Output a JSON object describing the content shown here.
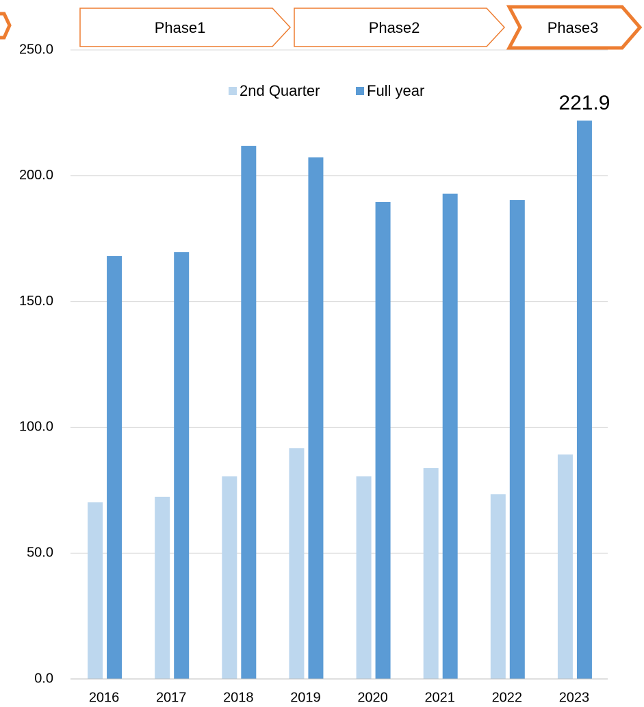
{
  "chart_data": {
    "type": "bar",
    "phases": [
      "Phase1",
      "Phase2",
      "Phase3"
    ],
    "categories": [
      "2016",
      "2017",
      "2018",
      "2019",
      "2020",
      "2021",
      "2022",
      "2023"
    ],
    "series": [
      {
        "name": "2nd Quarter",
        "color": "#bdd7ee",
        "values": [
          70.2,
          72.4,
          80.5,
          91.7,
          80.5,
          83.8,
          73.4,
          89.2
        ]
      },
      {
        "name": "Full year",
        "color": "#5b9bd5",
        "values": [
          168.1,
          169.7,
          211.9,
          207.3,
          189.6,
          192.9,
          190.4,
          221.9
        ]
      }
    ],
    "ylim": [
      0,
      250
    ],
    "yticks": [
      {
        "value": 0,
        "label": "0.0"
      },
      {
        "value": 50,
        "label": "50.0"
      },
      {
        "value": 100,
        "label": "100.0"
      },
      {
        "value": 150,
        "label": "150.0"
      },
      {
        "value": 200,
        "label": "200.0"
      },
      {
        "value": 250,
        "label": "250.0"
      }
    ],
    "grid": true,
    "legend": "top"
  }
}
